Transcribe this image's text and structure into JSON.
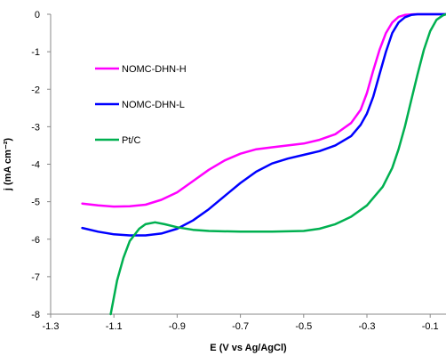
{
  "chart_data": {
    "type": "line",
    "title": "",
    "xlabel": "E (V vs Ag/AgCl)",
    "ylabel": "j (mA cm⁻²)",
    "xlim": [
      -1.3,
      -0.05
    ],
    "ylim": [
      -8,
      0
    ],
    "x_ticks": [
      -1.3,
      -1.1,
      -0.9,
      -0.7,
      -0.5,
      -0.3,
      -0.1
    ],
    "x_tick_labels": [
      "-1.3",
      "-1.1",
      "-0.9",
      "-0.7",
      "-0.5",
      "-0.3",
      "-0.1"
    ],
    "y_ticks": [
      0,
      -1,
      -2,
      -3,
      -4,
      -5,
      -6,
      -7,
      -8
    ],
    "y_tick_labels": [
      "0",
      "-1",
      "-2",
      "-3",
      "-4",
      "-5",
      "-6",
      "-7",
      "-8"
    ],
    "grid": false,
    "legend_position": "left",
    "series": [
      {
        "name": "NOMC-DHN-H",
        "color": "#ff00ff",
        "points": [
          [
            -1.2,
            -5.05
          ],
          [
            -1.15,
            -5.1
          ],
          [
            -1.1,
            -5.13
          ],
          [
            -1.05,
            -5.12
          ],
          [
            -1.0,
            -5.08
          ],
          [
            -0.95,
            -4.95
          ],
          [
            -0.9,
            -4.75
          ],
          [
            -0.85,
            -4.45
          ],
          [
            -0.8,
            -4.15
          ],
          [
            -0.75,
            -3.9
          ],
          [
            -0.7,
            -3.72
          ],
          [
            -0.65,
            -3.6
          ],
          [
            -0.6,
            -3.55
          ],
          [
            -0.55,
            -3.5
          ],
          [
            -0.5,
            -3.45
          ],
          [
            -0.45,
            -3.35
          ],
          [
            -0.4,
            -3.2
          ],
          [
            -0.35,
            -2.9
          ],
          [
            -0.32,
            -2.55
          ],
          [
            -0.3,
            -2.1
          ],
          [
            -0.28,
            -1.5
          ],
          [
            -0.26,
            -0.95
          ],
          [
            -0.24,
            -0.5
          ],
          [
            -0.22,
            -0.22
          ],
          [
            -0.2,
            -0.07
          ],
          [
            -0.18,
            -0.02
          ],
          [
            -0.15,
            0
          ],
          [
            -0.1,
            0
          ],
          [
            -0.05,
            0
          ]
        ]
      },
      {
        "name": "NOMC-DHN-L",
        "color": "#0000ff",
        "points": [
          [
            -1.2,
            -5.7
          ],
          [
            -1.15,
            -5.8
          ],
          [
            -1.1,
            -5.87
          ],
          [
            -1.05,
            -5.9
          ],
          [
            -1.0,
            -5.9
          ],
          [
            -0.95,
            -5.85
          ],
          [
            -0.9,
            -5.72
          ],
          [
            -0.85,
            -5.5
          ],
          [
            -0.8,
            -5.2
          ],
          [
            -0.75,
            -4.85
          ],
          [
            -0.7,
            -4.5
          ],
          [
            -0.65,
            -4.2
          ],
          [
            -0.6,
            -3.98
          ],
          [
            -0.55,
            -3.85
          ],
          [
            -0.5,
            -3.75
          ],
          [
            -0.45,
            -3.65
          ],
          [
            -0.4,
            -3.5
          ],
          [
            -0.35,
            -3.25
          ],
          [
            -0.32,
            -2.95
          ],
          [
            -0.3,
            -2.65
          ],
          [
            -0.28,
            -2.2
          ],
          [
            -0.26,
            -1.6
          ],
          [
            -0.24,
            -1.0
          ],
          [
            -0.22,
            -0.5
          ],
          [
            -0.2,
            -0.22
          ],
          [
            -0.18,
            -0.08
          ],
          [
            -0.16,
            -0.02
          ],
          [
            -0.14,
            0
          ],
          [
            -0.1,
            0
          ],
          [
            -0.05,
            0
          ]
        ]
      },
      {
        "name": "Pt/C",
        "color": "#00b050",
        "points": [
          [
            -1.11,
            -8.0
          ],
          [
            -1.09,
            -7.1
          ],
          [
            -1.07,
            -6.5
          ],
          [
            -1.05,
            -6.05
          ],
          [
            -1.02,
            -5.72
          ],
          [
            -1.0,
            -5.6
          ],
          [
            -0.97,
            -5.55
          ],
          [
            -0.94,
            -5.6
          ],
          [
            -0.9,
            -5.68
          ],
          [
            -0.85,
            -5.75
          ],
          [
            -0.8,
            -5.78
          ],
          [
            -0.7,
            -5.8
          ],
          [
            -0.6,
            -5.8
          ],
          [
            -0.5,
            -5.78
          ],
          [
            -0.45,
            -5.72
          ],
          [
            -0.4,
            -5.6
          ],
          [
            -0.35,
            -5.4
          ],
          [
            -0.3,
            -5.1
          ],
          [
            -0.25,
            -4.6
          ],
          [
            -0.22,
            -4.1
          ],
          [
            -0.2,
            -3.6
          ],
          [
            -0.18,
            -3.0
          ],
          [
            -0.16,
            -2.3
          ],
          [
            -0.14,
            -1.6
          ],
          [
            -0.12,
            -0.95
          ],
          [
            -0.1,
            -0.45
          ],
          [
            -0.08,
            -0.15
          ],
          [
            -0.06,
            -0.03
          ],
          [
            -0.05,
            0
          ]
        ]
      }
    ]
  }
}
